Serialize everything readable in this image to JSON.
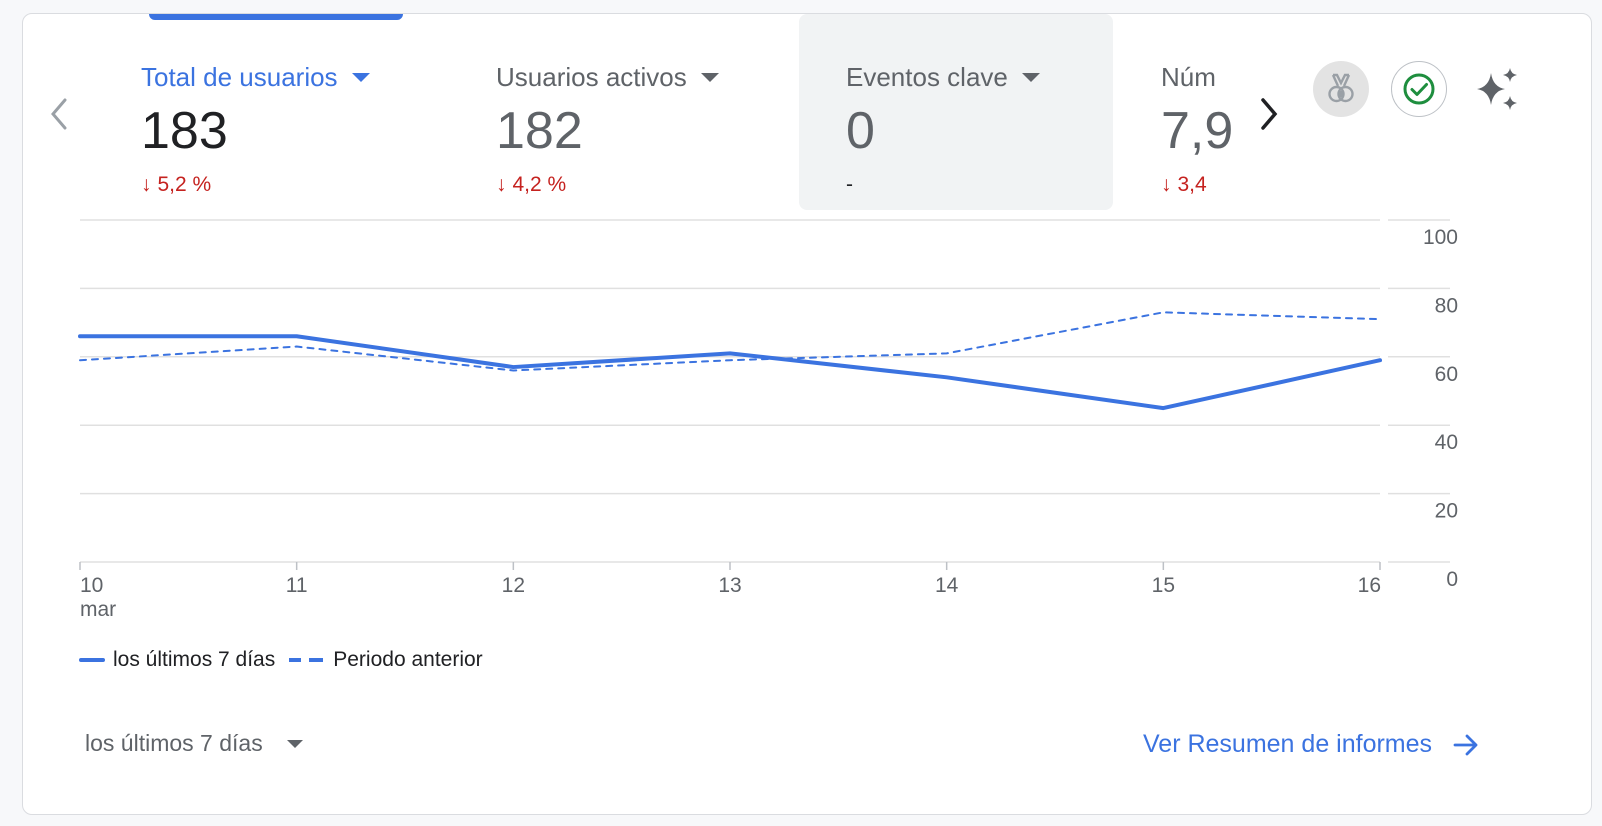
{
  "metrics": [
    {
      "name": "Total de usuarios",
      "value": "183",
      "change": "5,2 %",
      "trend": "down"
    },
    {
      "name": "Usuarios activos",
      "value": "182",
      "change": "4,2 %",
      "trend": "down"
    },
    {
      "name": "Eventos clave",
      "value": "0",
      "change": "-",
      "trend": "none"
    },
    {
      "name": "Núm",
      "value": "7,9",
      "change": "3,4",
      "trend": "down"
    }
  ],
  "icons": {
    "prev": "chevron-left-icon",
    "next": "chevron-right-icon",
    "medal": "medal-icon",
    "check": "check-circle-icon",
    "sparkle": "sparkle-icon",
    "arrow_down": "arrow-down-icon",
    "arrow_right": "arrow-right-icon"
  },
  "colors": {
    "accent": "#3b73e0",
    "negative": "#c5221f",
    "success": "#1e8e3e"
  },
  "chart_data": {
    "type": "line",
    "x": [
      "10",
      "11",
      "12",
      "13",
      "14",
      "15",
      "16"
    ],
    "x_sublabel": "mar",
    "series": [
      {
        "name": "los últimos 7 días",
        "style": "solid",
        "values": [
          66,
          66,
          57,
          61,
          54,
          45,
          59
        ]
      },
      {
        "name": "Periodo anterior",
        "style": "dashed",
        "values": [
          59,
          63,
          56,
          59,
          61,
          73,
          71
        ]
      }
    ],
    "ylim": [
      0,
      100
    ],
    "yticks": [
      "100",
      "80",
      "60",
      "40",
      "20",
      "0"
    ],
    "ytick_values": [
      100,
      80,
      60,
      40,
      20,
      0
    ],
    "grid": true,
    "legend": "bottom-left"
  },
  "footer": {
    "period_label": "los últimos 7 días",
    "report_link": "Ver Resumen de informes"
  }
}
